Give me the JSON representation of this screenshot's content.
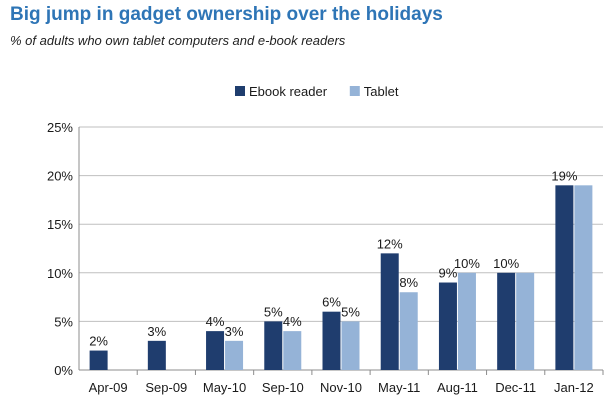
{
  "chart_data": {
    "type": "bar",
    "title": "Big jump in gadget ownership over the holidays",
    "subtitle": "% of adults who own tablet computers and e-book readers",
    "xlabel": "",
    "ylabel": "",
    "categories": [
      "Apr-09",
      "Sep-09",
      "May-10",
      "Sep-10",
      "Nov-10",
      "May-11",
      "Aug-11",
      "Dec-11",
      "Jan-12"
    ],
    "series": [
      {
        "name": "Ebook reader",
        "color": "#1f3d6e",
        "values": [
          2,
          3,
          4,
          5,
          6,
          12,
          9,
          10,
          19
        ],
        "labels": [
          "2%",
          "3%",
          "4%",
          "5%",
          "6%",
          "12%",
          "9%",
          "10%",
          "19%"
        ]
      },
      {
        "name": "Tablet",
        "color": "#95b3d7",
        "values": [
          null,
          null,
          3,
          4,
          5,
          8,
          10,
          10,
          19
        ],
        "labels": [
          "",
          "",
          "3%",
          "4%",
          "5%",
          "8%",
          "10%",
          "",
          ""
        ]
      }
    ],
    "ylim": [
      0,
      25
    ],
    "yticks": [
      0,
      5,
      10,
      15,
      20,
      25
    ],
    "ytick_labels": [
      "0%",
      "5%",
      "10%",
      "15%",
      "20%",
      "25%"
    ],
    "grid": true,
    "legend_position": "top-center"
  }
}
